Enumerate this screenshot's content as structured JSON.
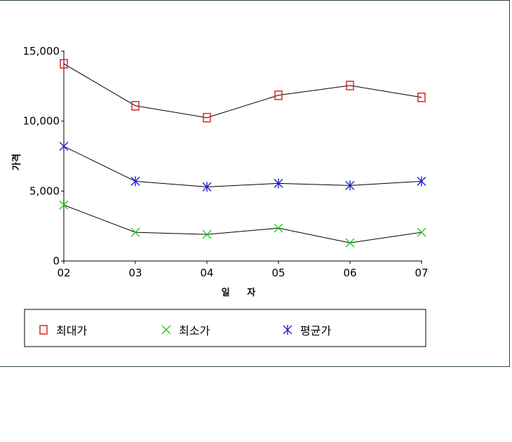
{
  "chart_data": {
    "type": "line",
    "xlabel": "일 자",
    "ylabel": "가격",
    "categories": [
      "02",
      "03",
      "04",
      "05",
      "06",
      "07"
    ],
    "yticks": [
      "0",
      "5,000",
      "10,000",
      "15,000"
    ],
    "ylim": [
      0,
      15000
    ],
    "grid": false,
    "legend_placement": "bottom",
    "series": [
      {
        "name": "최대가",
        "marker": "square",
        "marker_color": "#e32222",
        "values": [
          14100,
          11100,
          10250,
          11850,
          12550,
          11700
        ]
      },
      {
        "name": "최소가",
        "marker": "x",
        "marker_color": "#27d027",
        "values": [
          4000,
          2050,
          1900,
          2350,
          1300,
          2050
        ]
      },
      {
        "name": "평균가",
        "marker": "asterisk",
        "marker_color": "#2222cc",
        "values": [
          8200,
          5700,
          5300,
          5550,
          5400,
          5700
        ]
      }
    ]
  }
}
